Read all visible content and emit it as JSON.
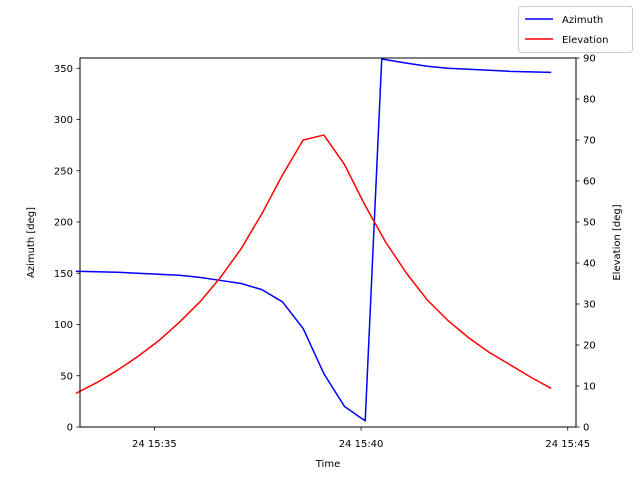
{
  "chart_data": {
    "type": "line",
    "title": "",
    "xlabel": "Time",
    "ylabel_left": "Azimuth [deg]",
    "ylabel_right": "Elevation [deg]",
    "x_unit": "minutes",
    "xlim": [
      33.2,
      45.2
    ],
    "ylim_left": [
      0,
      360
    ],
    "ylim_right": [
      0,
      90
    ],
    "x_ticks": [
      35,
      40,
      45
    ],
    "x_tick_labels": [
      "24 15:35",
      "24 15:40",
      "24 15:45"
    ],
    "y_ticks_left": [
      0,
      50,
      100,
      150,
      200,
      250,
      300,
      350
    ],
    "y_ticks_right": [
      0,
      10,
      20,
      30,
      40,
      50,
      60,
      70,
      80,
      90
    ],
    "legend_position": "top-right",
    "grid": false,
    "series": [
      {
        "name": "Azimuth",
        "axis": "left",
        "color": "#0000ff",
        "x": [
          33.1,
          33.6,
          34.1,
          34.6,
          35.1,
          35.6,
          36.1,
          36.6,
          37.1,
          37.6,
          38.1,
          38.6,
          39.1,
          39.6,
          40.1,
          40.5,
          41.1,
          41.6,
          42.1,
          42.6,
          43.1,
          43.6,
          44.1,
          44.6
        ],
        "y": [
          152,
          151.5,
          151,
          150,
          149,
          148,
          146,
          143,
          140,
          134,
          122,
          96,
          52,
          20,
          6,
          359,
          355,
          352,
          350,
          349,
          348,
          347,
          346.5,
          346
        ]
      },
      {
        "name": "Elevation",
        "axis": "right",
        "color": "#ff0000",
        "x": [
          33.1,
          33.6,
          34.1,
          34.6,
          35.1,
          35.6,
          36.1,
          36.6,
          37.1,
          37.6,
          38.1,
          38.6,
          39.1,
          39.6,
          40.1,
          40.6,
          41.1,
          41.6,
          42.1,
          42.6,
          43.1,
          43.6,
          44.1,
          44.6
        ],
        "y": [
          8.2,
          10.8,
          13.8,
          17.2,
          21,
          25.5,
          30.5,
          36.5,
          43.5,
          52,
          61.5,
          70,
          71.2,
          64,
          54,
          45,
          37.5,
          31,
          26,
          21.8,
          18.2,
          15.2,
          12.2,
          9.4
        ]
      }
    ]
  }
}
